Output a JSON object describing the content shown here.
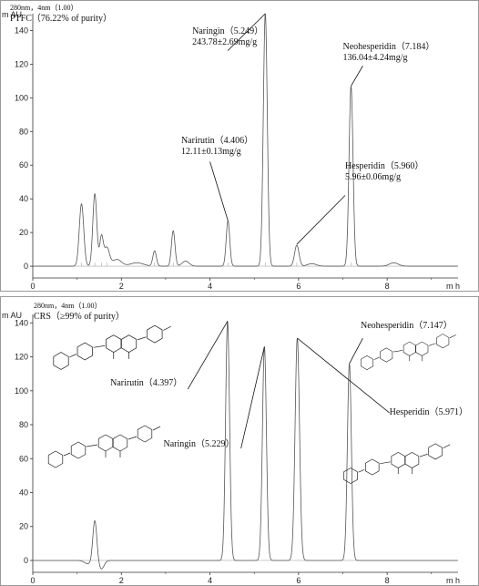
{
  "chart_data": [
    {
      "type": "line",
      "header_line1": "280nm，4nm（1.00）",
      "header_line2": "PTFC（76.22% of purity）",
      "ylabel": "m AU",
      "xlabel": "m h",
      "xlim": [
        0,
        9.6
      ],
      "ylim": [
        -7,
        150
      ],
      "x_ticks": [
        0,
        2,
        4,
        6,
        8
      ],
      "y_ticks": [
        0,
        20,
        40,
        60,
        80,
        100,
        120,
        140
      ],
      "baseline": 0,
      "peaks": [
        {
          "rt": 1.1,
          "height": 37,
          "width": 0.05
        },
        {
          "rt": 1.4,
          "height": 43,
          "width": 0.045
        },
        {
          "rt": 1.55,
          "height": 17,
          "width": 0.04
        },
        {
          "rt": 1.67,
          "height": 11,
          "width": 0.06
        },
        {
          "rt": 1.9,
          "height": 4,
          "width": 0.1
        },
        {
          "rt": 2.35,
          "height": 2,
          "width": 0.15
        },
        {
          "rt": 2.75,
          "height": 9,
          "width": 0.04
        },
        {
          "rt": 3.17,
          "height": 21,
          "width": 0.04
        },
        {
          "rt": 3.45,
          "height": 3,
          "width": 0.08
        },
        {
          "rt": 4.406,
          "height": 27,
          "width": 0.04
        },
        {
          "rt": 5.249,
          "height": 150,
          "width": 0.045
        },
        {
          "rt": 5.96,
          "height": 12.5,
          "width": 0.05
        },
        {
          "rt": 6.3,
          "height": 1.5,
          "width": 0.1
        },
        {
          "rt": 7.184,
          "height": 107,
          "width": 0.045
        },
        {
          "rt": 8.15,
          "height": 2,
          "width": 0.1
        }
      ],
      "annotations": [
        {
          "line1": "Naringin（5.249）",
          "line2": "243.78±2.69mg/g",
          "rt": 5.249,
          "peak_y": 150,
          "label_y": 138,
          "label_x_data": 3.6,
          "line_start_x_data": 4.4,
          "line_start_y": 128
        },
        {
          "line1": "Neohesperidin（7.184）",
          "line2": "136.04±4.24mg/g",
          "rt": 7.184,
          "peak_y": 107,
          "label_y": 129,
          "label_x_data": 7.0,
          "line_start_x_data": 7.45,
          "line_start_y": 119
        },
        {
          "line1": "Narirutin（4.406）",
          "line2": "12.11±0.13mg/g",
          "rt": 4.406,
          "peak_y": 27,
          "label_y": 73,
          "label_x_data": 3.35,
          "line_start_x_data": 4.0,
          "line_start_y": 62
        },
        {
          "line1": "Hesperidin（5.960）",
          "line2": "5.96±0.06mg/g",
          "rt": 5.96,
          "peak_y": 13,
          "label_y": 58,
          "label_x_data": 7.05,
          "line_start_x_data": 7.05,
          "line_start_y": 42
        }
      ]
    },
    {
      "type": "line",
      "header_line1": "280nm，4nm（1.00）",
      "header_line2": "CRS（≥99% of purity）",
      "ylabel": "m AU",
      "xlabel": "m h",
      "xlim": [
        0,
        9.6
      ],
      "ylim": [
        -7,
        145
      ],
      "x_ticks": [
        0,
        2,
        4,
        6,
        8
      ],
      "y_ticks": [
        0,
        20,
        40,
        60,
        80,
        100,
        120,
        140
      ],
      "baseline": 0,
      "peaks": [
        {
          "rt": 1.25,
          "height": -2,
          "width": 0.08
        },
        {
          "rt": 1.4,
          "height": 24,
          "width": 0.045
        },
        {
          "rt": 1.55,
          "height": -5,
          "width": 0.06
        },
        {
          "rt": 4.397,
          "height": 141,
          "width": 0.045
        },
        {
          "rt": 5.229,
          "height": 126,
          "width": 0.045
        },
        {
          "rt": 5.971,
          "height": 131,
          "width": 0.05
        },
        {
          "rt": 7.147,
          "height": 116,
          "width": 0.045
        }
      ],
      "annotations": [
        {
          "line1": "Narirutin（4.397）",
          "rt": 4.397,
          "peak_y": 141,
          "label_y": 103,
          "label_x_data": 1.75,
          "line_start_x_data": 3.5,
          "line_start_y": 101
        },
        {
          "line1": "Naringin（5.229）",
          "rt": 5.229,
          "peak_y": 126,
          "label_y": 67,
          "label_x_data": 2.95,
          "line_start_x_data": 4.7,
          "line_start_y": 66
        },
        {
          "line1": "Hesperidin（5.971）",
          "rt": 5.971,
          "peak_y": 131,
          "label_y": 86,
          "label_x_data": 8.05,
          "line_start_x_data": 8.05,
          "line_start_y": 87
        },
        {
          "line1": "Neohesperidin（7.147）",
          "rt": 7.147,
          "peak_y": 116,
          "label_y": 137,
          "label_x_data": 7.4,
          "line_start_x_data": 7.45,
          "line_start_y": 131
        }
      ]
    }
  ]
}
